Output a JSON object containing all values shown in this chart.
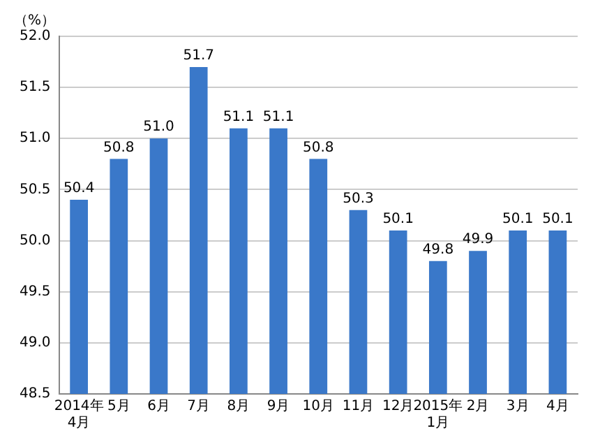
{
  "chart_data": {
    "type": "bar",
    "ylabel": "（%）",
    "categories": [
      "2014年\n4月",
      "5月",
      "6月",
      "7月",
      "8月",
      "9月",
      "10月",
      "11月",
      "12月",
      "2015年\n1月",
      "2月",
      "3月",
      "4月"
    ],
    "values": [
      50.4,
      50.8,
      51.0,
      51.7,
      51.1,
      51.1,
      50.8,
      50.3,
      50.1,
      49.8,
      49.9,
      50.1,
      50.1
    ],
    "value_labels": [
      "50.4",
      "50.8",
      "51.0",
      "51.7",
      "51.1",
      "51.1",
      "50.8",
      "50.3",
      "50.1",
      "49.8",
      "49.9",
      "50.1",
      "50.1"
    ],
    "color": "#3a78c9",
    "ylim": [
      48.5,
      52.0
    ],
    "yticks": [
      {
        "value": 48.5,
        "label": "48.5"
      },
      {
        "value": 49.0,
        "label": "49.0"
      },
      {
        "value": 49.5,
        "label": "49.5"
      },
      {
        "value": 50.0,
        "label": "50.0"
      },
      {
        "value": 50.5,
        "label": "50.5"
      },
      {
        "value": 51.0,
        "label": "51.0"
      },
      {
        "value": 51.5,
        "label": "51.5"
      },
      {
        "value": 52.0,
        "label": "52.0"
      }
    ],
    "grid": "y"
  }
}
